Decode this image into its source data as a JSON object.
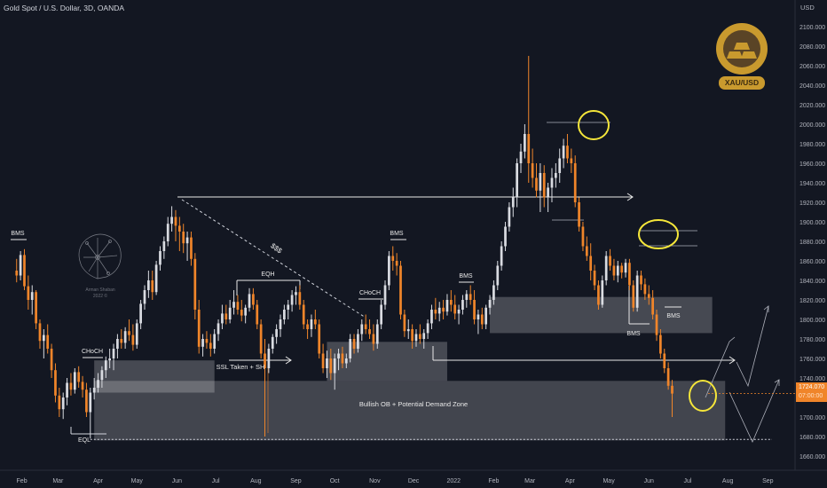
{
  "header": {
    "title": "Gold Spot / U.S. Dollar, 3D, OANDA",
    "currency": "USD"
  },
  "price_badge": {
    "price": "1724.070",
    "countdown": "07:00:00",
    "color": "#f0852a"
  },
  "logo": {
    "text": "XAU/USD",
    "icon": "gold-bars-icon",
    "color": "#c99a2e"
  },
  "author": {
    "line1": "Arman Shaban",
    "line2": "2022 ©",
    "icon": "brain-sketch-icon"
  },
  "colors": {
    "background": "#131722",
    "bull": "#d9dbe1",
    "bear": "#f0852a",
    "text": "#d1d4dc",
    "axis_text": "#b2b5be",
    "marker": "#f5e63a",
    "zone": "#ffffff"
  },
  "chart_data": {
    "type": "candlestick",
    "title": "Gold Spot / U.S. Dollar, 3D, OANDA",
    "y_axis": {
      "unit": "USD",
      "range": [
        1640,
        2120
      ],
      "ticks": [
        "1640.000",
        "1660.000",
        "1680.000",
        "1700.000",
        "1720.000",
        "1740.000",
        "1760.000",
        "1780.000",
        "1800.000",
        "1820.000",
        "1840.000",
        "1860.000",
        "1880.000",
        "1900.000",
        "1920.000",
        "1940.000",
        "1960.000",
        "1980.000",
        "2000.000",
        "2020.000",
        "2040.000",
        "2060.000",
        "2080.000",
        "2100.000"
      ]
    },
    "x_axis": {
      "ticks": [
        "Feb",
        "Mar",
        "Apr",
        "May",
        "Jun",
        "Jul",
        "Aug",
        "Sep",
        "Oct",
        "Nov",
        "Dec",
        "2022",
        "Feb",
        "Mar",
        "Apr",
        "May",
        "Jun",
        "Jul",
        "Aug",
        "Sep"
      ],
      "range": [
        "2021-01-22",
        "2022-09-20"
      ]
    },
    "grid": false,
    "last_price": 1724.07,
    "candles": [
      [
        "2021-01-28",
        1850,
        1862,
        1838,
        1845
      ],
      [
        "2021-01-31",
        1845,
        1870,
        1840,
        1866
      ],
      [
        "2021-02-03",
        1866,
        1872,
        1830,
        1834
      ],
      [
        "2021-02-06",
        1834,
        1845,
        1810,
        1820
      ],
      [
        "2021-02-09",
        1820,
        1835,
        1805,
        1828
      ],
      [
        "2021-02-12",
        1828,
        1830,
        1790,
        1796
      ],
      [
        "2021-02-15",
        1796,
        1800,
        1770,
        1778
      ],
      [
        "2021-02-18",
        1778,
        1790,
        1760,
        1784
      ],
      [
        "2021-02-21",
        1784,
        1795,
        1765,
        1770
      ],
      [
        "2021-02-24",
        1770,
        1775,
        1740,
        1748
      ],
      [
        "2021-02-27",
        1748,
        1755,
        1715,
        1722
      ],
      [
        "2021-03-02",
        1722,
        1730,
        1700,
        1708
      ],
      [
        "2021-03-05",
        1708,
        1725,
        1698,
        1720
      ],
      [
        "2021-03-08",
        1720,
        1740,
        1712,
        1735
      ],
      [
        "2021-03-11",
        1735,
        1745,
        1722,
        1728
      ],
      [
        "2021-03-14",
        1728,
        1750,
        1724,
        1746
      ],
      [
        "2021-03-17",
        1746,
        1752,
        1730,
        1736
      ],
      [
        "2021-03-20",
        1736,
        1742,
        1720,
        1728
      ],
      [
        "2021-03-23",
        1728,
        1735,
        1700,
        1705
      ],
      [
        "2021-03-26",
        1705,
        1730,
        1678,
        1725
      ],
      [
        "2021-03-29",
        1725,
        1740,
        1718,
        1730
      ],
      [
        "2021-04-01",
        1730,
        1745,
        1725,
        1738
      ],
      [
        "2021-04-04",
        1738,
        1752,
        1730,
        1748
      ],
      [
        "2021-04-07",
        1748,
        1762,
        1740,
        1758
      ],
      [
        "2021-04-10",
        1758,
        1770,
        1750,
        1760
      ],
      [
        "2021-04-13",
        1760,
        1775,
        1748,
        1770
      ],
      [
        "2021-04-16",
        1770,
        1785,
        1760,
        1780
      ],
      [
        "2021-04-19",
        1780,
        1790,
        1770,
        1776
      ],
      [
        "2021-04-22",
        1776,
        1792,
        1770,
        1788
      ],
      [
        "2021-04-25",
        1788,
        1800,
        1778,
        1784
      ],
      [
        "2021-04-28",
        1784,
        1795,
        1768,
        1774
      ],
      [
        "2021-05-01",
        1774,
        1800,
        1770,
        1796
      ],
      [
        "2021-05-04",
        1796,
        1820,
        1790,
        1816
      ],
      [
        "2021-05-07",
        1816,
        1835,
        1810,
        1830
      ],
      [
        "2021-05-10",
        1830,
        1850,
        1822,
        1840
      ],
      [
        "2021-05-13",
        1840,
        1850,
        1820,
        1828
      ],
      [
        "2021-05-16",
        1828,
        1860,
        1825,
        1856
      ],
      [
        "2021-05-19",
        1856,
        1875,
        1850,
        1870
      ],
      [
        "2021-05-22",
        1870,
        1885,
        1862,
        1880
      ],
      [
        "2021-05-25",
        1880,
        1905,
        1875,
        1898
      ],
      [
        "2021-05-28",
        1898,
        1916,
        1890,
        1905
      ],
      [
        "2021-05-31",
        1905,
        1912,
        1880,
        1896
      ],
      [
        "2021-06-03",
        1896,
        1905,
        1870,
        1890
      ],
      [
        "2021-06-06",
        1890,
        1898,
        1868,
        1878
      ],
      [
        "2021-06-09",
        1878,
        1890,
        1860,
        1884
      ],
      [
        "2021-06-12",
        1884,
        1890,
        1855,
        1862
      ],
      [
        "2021-06-15",
        1862,
        1868,
        1800,
        1810
      ],
      [
        "2021-06-18",
        1810,
        1820,
        1765,
        1772
      ],
      [
        "2021-06-21",
        1772,
        1785,
        1762,
        1780
      ],
      [
        "2021-06-24",
        1780,
        1788,
        1770,
        1776
      ],
      [
        "2021-06-27",
        1776,
        1785,
        1762,
        1770
      ],
      [
        "2021-06-30",
        1770,
        1790,
        1765,
        1785
      ],
      [
        "2021-07-03",
        1785,
        1800,
        1778,
        1796
      ],
      [
        "2021-07-06",
        1796,
        1815,
        1790,
        1806
      ],
      [
        "2021-07-09",
        1806,
        1815,
        1795,
        1800
      ],
      [
        "2021-07-12",
        1800,
        1820,
        1796,
        1812
      ],
      [
        "2021-07-15",
        1812,
        1830,
        1805,
        1818
      ],
      [
        "2021-07-18",
        1818,
        1825,
        1805,
        1810
      ],
      [
        "2021-07-21",
        1810,
        1820,
        1798,
        1804
      ],
      [
        "2021-07-24",
        1804,
        1815,
        1796,
        1812
      ],
      [
        "2021-07-27",
        1812,
        1832,
        1808,
        1826
      ],
      [
        "2021-07-30",
        1826,
        1832,
        1810,
        1815
      ],
      [
        "2021-08-02",
        1815,
        1820,
        1790,
        1795
      ],
      [
        "2021-08-05",
        1795,
        1800,
        1760,
        1765
      ],
      [
        "2021-08-08",
        1765,
        1780,
        1680,
        1750
      ],
      [
        "2021-08-11",
        1750,
        1775,
        1745,
        1770
      ],
      [
        "2021-08-14",
        1770,
        1785,
        1765,
        1782
      ],
      [
        "2021-08-17",
        1782,
        1795,
        1775,
        1790
      ],
      [
        "2021-08-20",
        1790,
        1805,
        1782,
        1800
      ],
      [
        "2021-08-23",
        1800,
        1815,
        1795,
        1810
      ],
      [
        "2021-08-26",
        1810,
        1820,
        1800,
        1815
      ],
      [
        "2021-08-29",
        1815,
        1830,
        1808,
        1825
      ],
      [
        "2021-09-01",
        1825,
        1834,
        1815,
        1828
      ],
      [
        "2021-09-04",
        1828,
        1835,
        1810,
        1815
      ],
      [
        "2021-09-07",
        1815,
        1820,
        1790,
        1795
      ],
      [
        "2021-09-10",
        1795,
        1800,
        1780,
        1790
      ],
      [
        "2021-09-13",
        1790,
        1805,
        1782,
        1800
      ],
      [
        "2021-09-16",
        1800,
        1810,
        1790,
        1795
      ],
      [
        "2021-09-19",
        1795,
        1800,
        1760,
        1765
      ],
      [
        "2021-09-22",
        1765,
        1775,
        1745,
        1750
      ],
      [
        "2021-09-25",
        1750,
        1768,
        1740,
        1760
      ],
      [
        "2021-09-28",
        1760,
        1770,
        1738,
        1745
      ],
      [
        "2021-10-01",
        1745,
        1765,
        1728,
        1760
      ],
      [
        "2021-10-04",
        1760,
        1770,
        1748,
        1765
      ],
      [
        "2021-10-07",
        1765,
        1772,
        1750,
        1755
      ],
      [
        "2021-10-10",
        1755,
        1765,
        1750,
        1760
      ],
      [
        "2021-10-13",
        1760,
        1785,
        1756,
        1780
      ],
      [
        "2021-10-16",
        1780,
        1785,
        1765,
        1770
      ],
      [
        "2021-10-19",
        1770,
        1790,
        1766,
        1785
      ],
      [
        "2021-10-22",
        1785,
        1800,
        1778,
        1795
      ],
      [
        "2021-10-25",
        1795,
        1805,
        1785,
        1790
      ],
      [
        "2021-10-28",
        1790,
        1800,
        1780,
        1785
      ],
      [
        "2021-10-31",
        1785,
        1795,
        1768,
        1775
      ],
      [
        "2021-11-03",
        1775,
        1800,
        1770,
        1795
      ],
      [
        "2021-11-06",
        1795,
        1820,
        1790,
        1815
      ],
      [
        "2021-11-09",
        1815,
        1840,
        1810,
        1835
      ],
      [
        "2021-11-12",
        1835,
        1870,
        1830,
        1865
      ],
      [
        "2021-11-15",
        1865,
        1875,
        1850,
        1860
      ],
      [
        "2021-11-18",
        1860,
        1868,
        1845,
        1855
      ],
      [
        "2021-11-21",
        1855,
        1860,
        1800,
        1805
      ],
      [
        "2021-11-24",
        1805,
        1810,
        1782,
        1788
      ],
      [
        "2021-11-27",
        1788,
        1800,
        1780,
        1790
      ],
      [
        "2021-11-30",
        1790,
        1795,
        1770,
        1778
      ],
      [
        "2021-12-03",
        1778,
        1790,
        1772,
        1785
      ],
      [
        "2021-12-06",
        1785,
        1795,
        1775,
        1780
      ],
      [
        "2021-12-09",
        1780,
        1790,
        1770,
        1786
      ],
      [
        "2021-12-12",
        1786,
        1800,
        1780,
        1796
      ],
      [
        "2021-12-15",
        1796,
        1815,
        1790,
        1810
      ],
      [
        "2021-12-18",
        1810,
        1822,
        1800,
        1806
      ],
      [
        "2021-12-21",
        1806,
        1818,
        1798,
        1812
      ],
      [
        "2021-12-24",
        1812,
        1820,
        1800,
        1808
      ],
      [
        "2021-12-27",
        1808,
        1826,
        1804,
        1820
      ],
      [
        "2021-12-30",
        1820,
        1830,
        1808,
        1815
      ],
      [
        "2022-01-02",
        1815,
        1825,
        1800,
        1806
      ],
      [
        "2022-01-05",
        1806,
        1815,
        1795,
        1810
      ],
      [
        "2022-01-08",
        1810,
        1825,
        1805,
        1820
      ],
      [
        "2022-01-11",
        1820,
        1830,
        1812,
        1826
      ],
      [
        "2022-01-14",
        1826,
        1835,
        1815,
        1820
      ],
      [
        "2022-01-17",
        1820,
        1830,
        1795,
        1800
      ],
      [
        "2022-01-20",
        1800,
        1810,
        1785,
        1805
      ],
      [
        "2022-01-23",
        1805,
        1812,
        1790,
        1795
      ],
      [
        "2022-01-26",
        1795,
        1815,
        1790,
        1812
      ],
      [
        "2022-01-29",
        1812,
        1825,
        1805,
        1820
      ],
      [
        "2022-02-01",
        1820,
        1840,
        1815,
        1835
      ],
      [
        "2022-02-04",
        1835,
        1860,
        1830,
        1855
      ],
      [
        "2022-02-07",
        1855,
        1880,
        1850,
        1875
      ],
      [
        "2022-02-10",
        1875,
        1900,
        1870,
        1895
      ],
      [
        "2022-02-13",
        1895,
        1920,
        1890,
        1915
      ],
      [
        "2022-02-16",
        1915,
        1935,
        1905,
        1925
      ],
      [
        "2022-02-19",
        1925,
        1965,
        1915,
        1960
      ],
      [
        "2022-02-22",
        1960,
        1980,
        1950,
        1972
      ],
      [
        "2022-02-25",
        1972,
        2000,
        1965,
        1990
      ],
      [
        "2022-02-28",
        1990,
        2070,
        1940,
        1960
      ],
      [
        "2022-03-03",
        1960,
        1975,
        1935,
        1945
      ],
      [
        "2022-03-06",
        1945,
        1960,
        1925,
        1932
      ],
      [
        "2022-03-09",
        1932,
        1960,
        1910,
        1950
      ],
      [
        "2022-03-12",
        1950,
        1958,
        1915,
        1925
      ],
      [
        "2022-03-15",
        1925,
        1940,
        1910,
        1935
      ],
      [
        "2022-03-18",
        1935,
        1955,
        1920,
        1945
      ],
      [
        "2022-03-21",
        1945,
        1960,
        1935,
        1950
      ],
      [
        "2022-03-24",
        1950,
        1975,
        1940,
        1965
      ],
      [
        "2022-03-27",
        1965,
        1985,
        1955,
        1978
      ],
      [
        "2022-03-30",
        1978,
        1990,
        1960,
        1965
      ],
      [
        "2022-04-02",
        1965,
        1975,
        1950,
        1960
      ],
      [
        "2022-04-05",
        1960,
        1968,
        1915,
        1920
      ],
      [
        "2022-04-08",
        1920,
        1925,
        1890,
        1895
      ],
      [
        "2022-04-11",
        1895,
        1900,
        1870,
        1875
      ],
      [
        "2022-04-14",
        1875,
        1885,
        1860,
        1865
      ],
      [
        "2022-04-17",
        1865,
        1878,
        1840,
        1850
      ],
      [
        "2022-04-20",
        1850,
        1856,
        1830,
        1835
      ],
      [
        "2022-04-23",
        1835,
        1840,
        1810,
        1815
      ],
      [
        "2022-04-26",
        1815,
        1845,
        1812,
        1840
      ],
      [
        "2022-04-29",
        1840,
        1870,
        1835,
        1865
      ],
      [
        "2022-05-02",
        1865,
        1872,
        1850,
        1855
      ],
      [
        "2022-05-05",
        1855,
        1862,
        1840,
        1845
      ],
      [
        "2022-05-08",
        1845,
        1860,
        1838,
        1855
      ],
      [
        "2022-05-11",
        1855,
        1858,
        1842,
        1848
      ],
      [
        "2022-05-14",
        1848,
        1862,
        1843,
        1858
      ],
      [
        "2022-05-17",
        1858,
        1862,
        1830,
        1835
      ],
      [
        "2022-05-20",
        1835,
        1840,
        1808,
        1812
      ],
      [
        "2022-05-23",
        1812,
        1850,
        1808,
        1845
      ],
      [
        "2022-05-26",
        1845,
        1850,
        1830,
        1836
      ],
      [
        "2022-05-29",
        1836,
        1842,
        1820,
        1826
      ],
      [
        "2022-06-01",
        1826,
        1835,
        1815,
        1822
      ],
      [
        "2022-06-04",
        1822,
        1830,
        1800,
        1805
      ],
      [
        "2022-06-07",
        1805,
        1810,
        1778,
        1784
      ],
      [
        "2022-06-10",
        1784,
        1790,
        1760,
        1765
      ],
      [
        "2022-06-13",
        1765,
        1770,
        1745,
        1750
      ],
      [
        "2022-06-16",
        1750,
        1756,
        1728,
        1732
      ],
      [
        "2022-06-19",
        1732,
        1738,
        1700,
        1724
      ]
    ],
    "annotations": [
      "BMS",
      "BMS",
      "BMS",
      "BMS",
      "BMS",
      "CHoCH",
      "CHoCH",
      "EQH",
      "EQL",
      "$$$",
      "SSL Taken + SH",
      "Bullish OB + Potential Demand Zone"
    ],
    "zones": [
      {
        "label": "Bullish OB + Potential Demand Zone",
        "x": [
          "2021-03-29",
          "2022-07-30"
        ],
        "y": [
          1676,
          1737
        ]
      },
      {
        "x": [
          "2021-03-29",
          "2021-06-30"
        ],
        "y": [
          1725,
          1758
        ]
      },
      {
        "x": [
          "2021-09-25",
          "2021-12-27"
        ],
        "y": [
          1737,
          1777
        ]
      },
      {
        "x": [
          "2022-01-29",
          "2022-07-20"
        ],
        "y": [
          1786,
          1823
        ]
      }
    ]
  }
}
